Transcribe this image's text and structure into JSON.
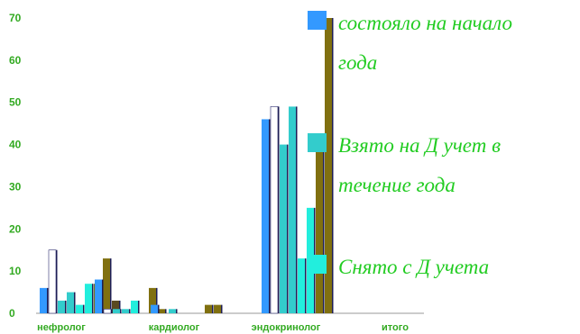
{
  "chart_data": {
    "type": "bar",
    "categories": [
      "нефролог",
      "кардиолог",
      "эндокринолог",
      "итого"
    ],
    "series": [
      {
        "name": "состояло на начало года",
        "color": "#3399ff",
        "values": [
          6,
          8,
          2,
          46
        ]
      },
      {
        "name": "",
        "color": "#ffffff",
        "values": [
          15,
          1,
          0,
          49
        ]
      },
      {
        "name": "Взято на Д учет в течение года",
        "color": "#33cccc",
        "values": [
          3,
          1,
          1,
          40
        ]
      },
      {
        "name": "",
        "color": "#33cccc",
        "values": [
          5,
          1,
          0,
          49
        ]
      },
      {
        "name": "Снято с Д учета",
        "color": "#22eedd",
        "values": [
          2,
          3,
          0,
          13
        ]
      },
      {
        "name": "",
        "color": "#22eedd",
        "values": [
          7,
          0,
          0,
          25
        ]
      },
      {
        "name": "",
        "color": "#807010",
        "values": [
          7,
          6,
          2,
          40
        ]
      },
      {
        "name": "",
        "color": "#807010",
        "values": [
          13,
          1,
          2,
          70
        ]
      },
      {
        "name": "",
        "color": "#5a4a20",
        "values": [
          3,
          0,
          0,
          0
        ]
      }
    ],
    "yticks": [
      0,
      10,
      20,
      30,
      40,
      50,
      60,
      70
    ],
    "ylim": [
      0,
      70
    ],
    "legend": [
      {
        "lines": [
          "состояло на начало",
          "года"
        ],
        "color": "#3399ff"
      },
      {
        "lines": [
          "Взято на Д учет в",
          "течение года"
        ],
        "color": "#33cccc"
      },
      {
        "lines": [
          "Снято с Д учета"
        ],
        "color": "#22eedd"
      }
    ],
    "legend_position": "right",
    "grid": false
  }
}
